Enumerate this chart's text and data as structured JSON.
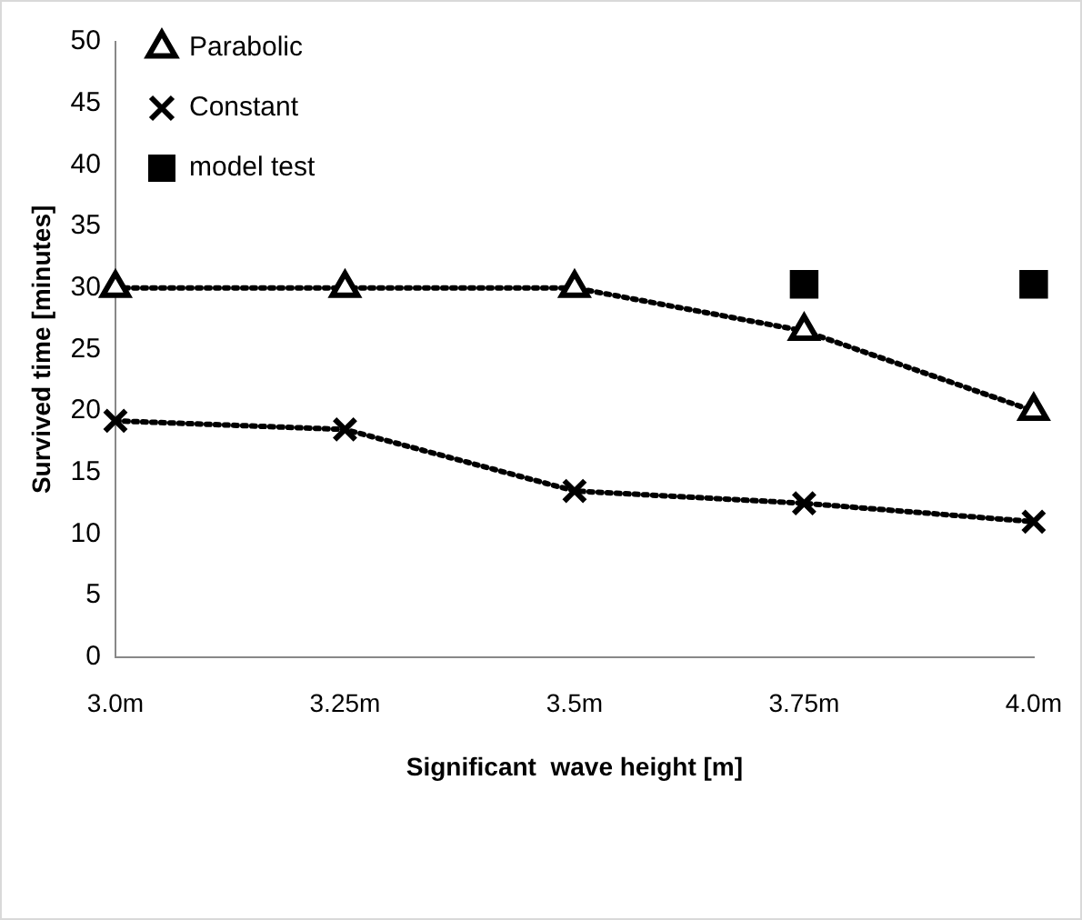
{
  "chart_data": {
    "type": "line",
    "xlabel": "Significant  wave height [m]",
    "ylabel": "Survived time [minutes]",
    "categories": [
      "3.0m",
      "3.25m",
      "3.5m",
      "3.75m",
      "4.0m"
    ],
    "series": [
      {
        "name": "Parabolic",
        "type": "line",
        "color": "#000000",
        "marker": "triangle",
        "line_style": "dotted",
        "values": [
          30,
          30,
          30,
          26.5,
          20
        ]
      },
      {
        "name": "Constant",
        "type": "line",
        "color": "#000000",
        "marker": "cross",
        "line_style": "dotted",
        "values": [
          19.2,
          18.5,
          13.5,
          12.5,
          11
        ]
      },
      {
        "name": "model test",
        "type": "scatter",
        "color": "#000000",
        "marker": "square",
        "values": [
          null,
          null,
          null,
          30.3,
          30.3
        ]
      }
    ],
    "ylim": [
      0,
      50
    ],
    "yticks": [
      0,
      5,
      10,
      15,
      20,
      25,
      30,
      35,
      40,
      45,
      50
    ],
    "grid": false,
    "legend": "top left"
  }
}
